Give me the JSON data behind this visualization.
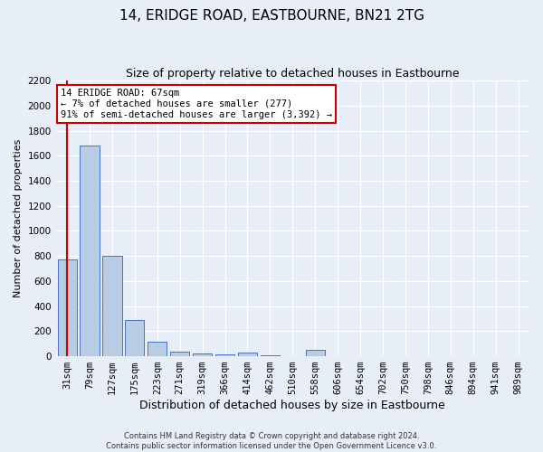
{
  "title": "14, ERIDGE ROAD, EASTBOURNE, BN21 2TG",
  "subtitle": "Size of property relative to detached houses in Eastbourne",
  "xlabel": "Distribution of detached houses by size in Eastbourne",
  "ylabel": "Number of detached properties",
  "categories": [
    "31sqm",
    "79sqm",
    "127sqm",
    "175sqm",
    "223sqm",
    "271sqm",
    "319sqm",
    "366sqm",
    "414sqm",
    "462sqm",
    "510sqm",
    "558sqm",
    "606sqm",
    "654sqm",
    "702sqm",
    "750sqm",
    "798sqm",
    "846sqm",
    "894sqm",
    "941sqm",
    "989sqm"
  ],
  "values": [
    770,
    1680,
    800,
    290,
    115,
    35,
    25,
    18,
    30,
    8,
    0,
    50,
    0,
    0,
    0,
    0,
    0,
    0,
    0,
    0,
    0
  ],
  "bar_color": "#b8cce4",
  "bar_edge_color": "#4472c4",
  "highlight_line_color": "#cc0000",
  "highlight_bar_index": 0,
  "annotation_line1": "14 ERIDGE ROAD: 67sqm",
  "annotation_line2": "← 7% of detached houses are smaller (277)",
  "annotation_line3": "91% of semi-detached houses are larger (3,392) →",
  "annotation_box_color": "#cc0000",
  "annotation_box_facecolor": "white",
  "ylim": [
    0,
    2200
  ],
  "yticks": [
    0,
    200,
    400,
    600,
    800,
    1000,
    1200,
    1400,
    1600,
    1800,
    2000,
    2200
  ],
  "footer_line1": "Contains HM Land Registry data © Crown copyright and database right 2024.",
  "footer_line2": "Contains public sector information licensed under the Open Government Licence v3.0.",
  "background_color": "#e8eef8",
  "plot_bg_color": "#e8eef8",
  "grid_color": "white",
  "title_fontsize": 11,
  "subtitle_fontsize": 9,
  "tick_fontsize": 7.5,
  "ylabel_fontsize": 8,
  "xlabel_fontsize": 9,
  "footer_fontsize": 6,
  "annotation_fontsize": 7.5
}
